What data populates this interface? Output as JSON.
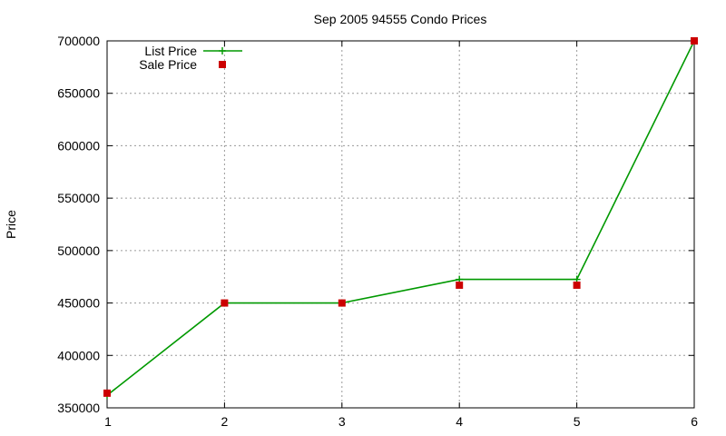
{
  "chart_data": {
    "type": "line",
    "title": "Sep 2005 94555 Condo Prices",
    "xlabel": "",
    "ylabel": "Price",
    "xlim": [
      1,
      6
    ],
    "ylim": [
      350000,
      700000
    ],
    "xticks": [
      "1",
      "2",
      "3",
      "4",
      "5",
      "6"
    ],
    "yticks": [
      "350000",
      "400000",
      "450000",
      "500000",
      "550000",
      "600000",
      "650000",
      "700000"
    ],
    "grid": true,
    "legend_position": "top-left",
    "series": [
      {
        "name": "List Price",
        "style": "line-with-plus-markers",
        "color": "#009900",
        "x": [
          1,
          2,
          3,
          4,
          5,
          6
        ],
        "y": [
          362000,
          450000,
          450000,
          472500,
          472500,
          700000
        ]
      },
      {
        "name": "Sale Price",
        "style": "square-markers",
        "color": "#cc0000",
        "x": [
          1,
          2,
          3,
          4,
          5,
          6
        ],
        "y": [
          364000,
          450000,
          450000,
          467000,
          467000,
          700000
        ]
      }
    ]
  }
}
